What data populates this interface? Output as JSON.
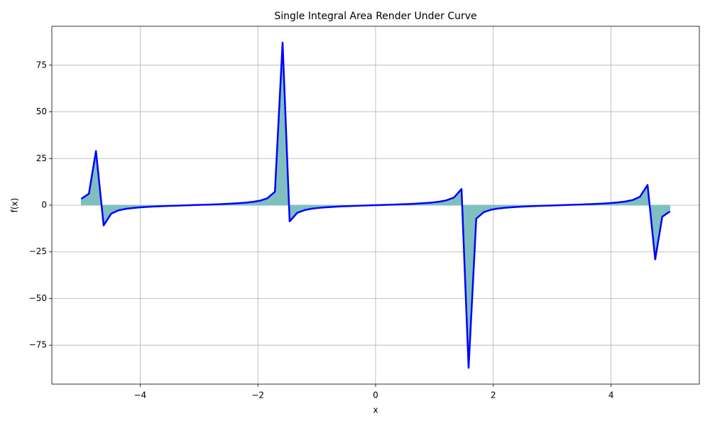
{
  "chart_data": {
    "type": "area_line",
    "title": "Single Integral Area Render Under Curve",
    "x_label": "x",
    "y_label": "f(x)",
    "x": [
      -5,
      -4.87,
      -4.75,
      -4.62,
      -4.49,
      -4.37,
      -4.24,
      -4.11,
      -3.99,
      -3.86,
      -3.73,
      -3.61,
      -3.48,
      -3.35,
      -3.23,
      -3.1,
      -2.97,
      -2.85,
      -2.72,
      -2.59,
      -2.47,
      -2.34,
      -2.22,
      -2.09,
      -1.96,
      -1.84,
      -1.71,
      -1.58,
      -1.46,
      -1.33,
      -1.2,
      -1.08,
      -0.95,
      -0.82,
      -0.7,
      -0.57,
      -0.44,
      -0.32,
      -0.19,
      -0.06,
      0.06,
      0.19,
      0.32,
      0.44,
      0.57,
      0.7,
      0.82,
      0.95,
      1.08,
      1.2,
      1.33,
      1.46,
      1.58,
      1.71,
      1.84,
      1.96,
      2.09,
      2.22,
      2.34,
      2.47,
      2.59,
      2.72,
      2.85,
      2.97,
      3.1,
      3.23,
      3.35,
      3.48,
      3.61,
      3.73,
      3.86,
      3.99,
      4.11,
      4.24,
      4.37,
      4.49,
      4.62,
      4.75,
      4.87,
      5
    ],
    "values": [
      3.38,
      6.16,
      29.02,
      -10.82,
      -4.5,
      -2.78,
      -1.96,
      -1.47,
      -1.13,
      -0.88,
      -0.67,
      -0.5,
      -0.35,
      -0.22,
      -0.09,
      0.04,
      0.17,
      0.3,
      0.45,
      0.61,
      0.8,
      1.03,
      1.33,
      1.76,
      2.43,
      3.69,
      7.2,
      87.13,
      -8.65,
      -4.06,
      -2.59,
      -1.85,
      -1.4,
      -1.08,
      -0.84,
      -0.64,
      -0.47,
      -0.33,
      -0.19,
      -0.06,
      0.06,
      0.19,
      0.33,
      0.47,
      0.64,
      0.84,
      1.08,
      1.4,
      1.85,
      2.59,
      4.06,
      8.65,
      -87.13,
      -7.2,
      -3.69,
      -2.43,
      -1.76,
      -1.33,
      -1.03,
      -0.8,
      -0.61,
      -0.45,
      -0.3,
      -0.17,
      -0.04,
      0.09,
      0.22,
      0.35,
      0.5,
      0.67,
      0.88,
      1.13,
      1.47,
      1.96,
      2.78,
      4.5,
      10.82,
      -29.02,
      -6.16,
      -3.38
    ],
    "color": "#0000ff",
    "fill_color": "#7fbfbf",
    "xlim": [
      -5.5,
      5.5
    ],
    "ylim": [
      -95.84,
      95.84
    ],
    "xticks": [
      {
        "value": -4,
        "label": "−4"
      },
      {
        "value": -2,
        "label": "−2"
      },
      0,
      2,
      4
    ],
    "yticks": [
      {
        "value": -75,
        "label": "−75"
      },
      {
        "value": -50,
        "label": "−50"
      },
      {
        "value": -25,
        "label": "−25"
      },
      0,
      25,
      50,
      75
    ],
    "grid": true
  }
}
